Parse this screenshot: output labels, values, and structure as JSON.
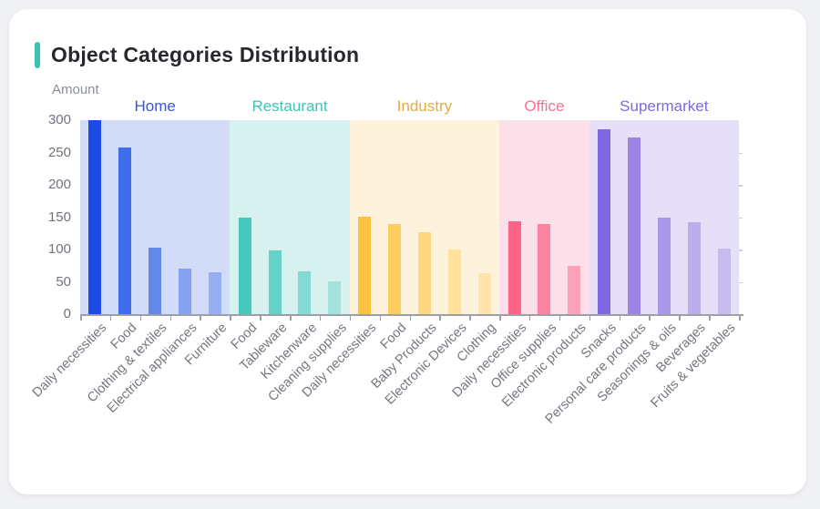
{
  "title": {
    "text": "Object Categories Distribution",
    "accent_color": "#3bc2b2"
  },
  "chart_data": {
    "type": "bar",
    "title": "Object Categories Distribution",
    "xlabel": "",
    "ylabel": "Amount",
    "ylim": [
      0,
      300
    ],
    "yticks": [
      0,
      50,
      100,
      150,
      200,
      250,
      300
    ],
    "grid": false,
    "legend_position": "none",
    "axis_color": "#9ba0a7",
    "groups": [
      {
        "name": "Home",
        "label_color": "#3355e6",
        "band_color": "#d2dbf8",
        "categories": [
          "Daily necessities",
          "Food",
          "Clothing & textiles",
          "Electrical appliances",
          "Furniture"
        ],
        "values": [
          300,
          258,
          103,
          70,
          65
        ],
        "bar_colors": [
          "#1b4be2",
          "#3f6ce8",
          "#6489ec",
          "#84a2ef",
          "#97aff1"
        ]
      },
      {
        "name": "Restaurant",
        "label_color": "#3fc3b6",
        "band_color": "#d7f1ef",
        "categories": [
          "Food",
          "Tableware",
          "Kitchenware",
          "Cleaning supplies"
        ],
        "values": [
          150,
          98,
          66,
          51
        ],
        "bar_colors": [
          "#45c8bd",
          "#65d1c8",
          "#84dad2",
          "#a2e3dd"
        ]
      },
      {
        "name": "Industry",
        "label_color": "#e4ab3e",
        "band_color": "#fdf2dc",
        "categories": [
          "Daily necessities",
          "Food",
          "Baby Products",
          "Electronic Devices",
          "Clothing"
        ],
        "values": [
          151,
          139,
          127,
          100,
          64
        ],
        "bar_colors": [
          "#ffc23e",
          "#ffcd5f",
          "#ffd77e",
          "#ffe09c",
          "#ffe5ab"
        ]
      },
      {
        "name": "Office",
        "label_color": "#fa6f95",
        "band_color": "#fce0e9",
        "categories": [
          "Daily necessities",
          "Office supplies",
          "Electronic products"
        ],
        "values": [
          143,
          139,
          75
        ],
        "bar_colors": [
          "#fb6389",
          "#fc84a0",
          "#fda3b7"
        ]
      },
      {
        "name": "Supermarket",
        "label_color": "#7e6ae0",
        "band_color": "#e5dff7",
        "categories": [
          "Snacks",
          "Personal care products",
          "Seasonings & oils",
          "Beverages",
          "Fruits & vegetables"
        ],
        "values": [
          286,
          273,
          149,
          142,
          102
        ],
        "bar_colors": [
          "#8168e2",
          "#9b84e6",
          "#ab97e9",
          "#bcaeec",
          "#c8bcee"
        ]
      }
    ]
  }
}
